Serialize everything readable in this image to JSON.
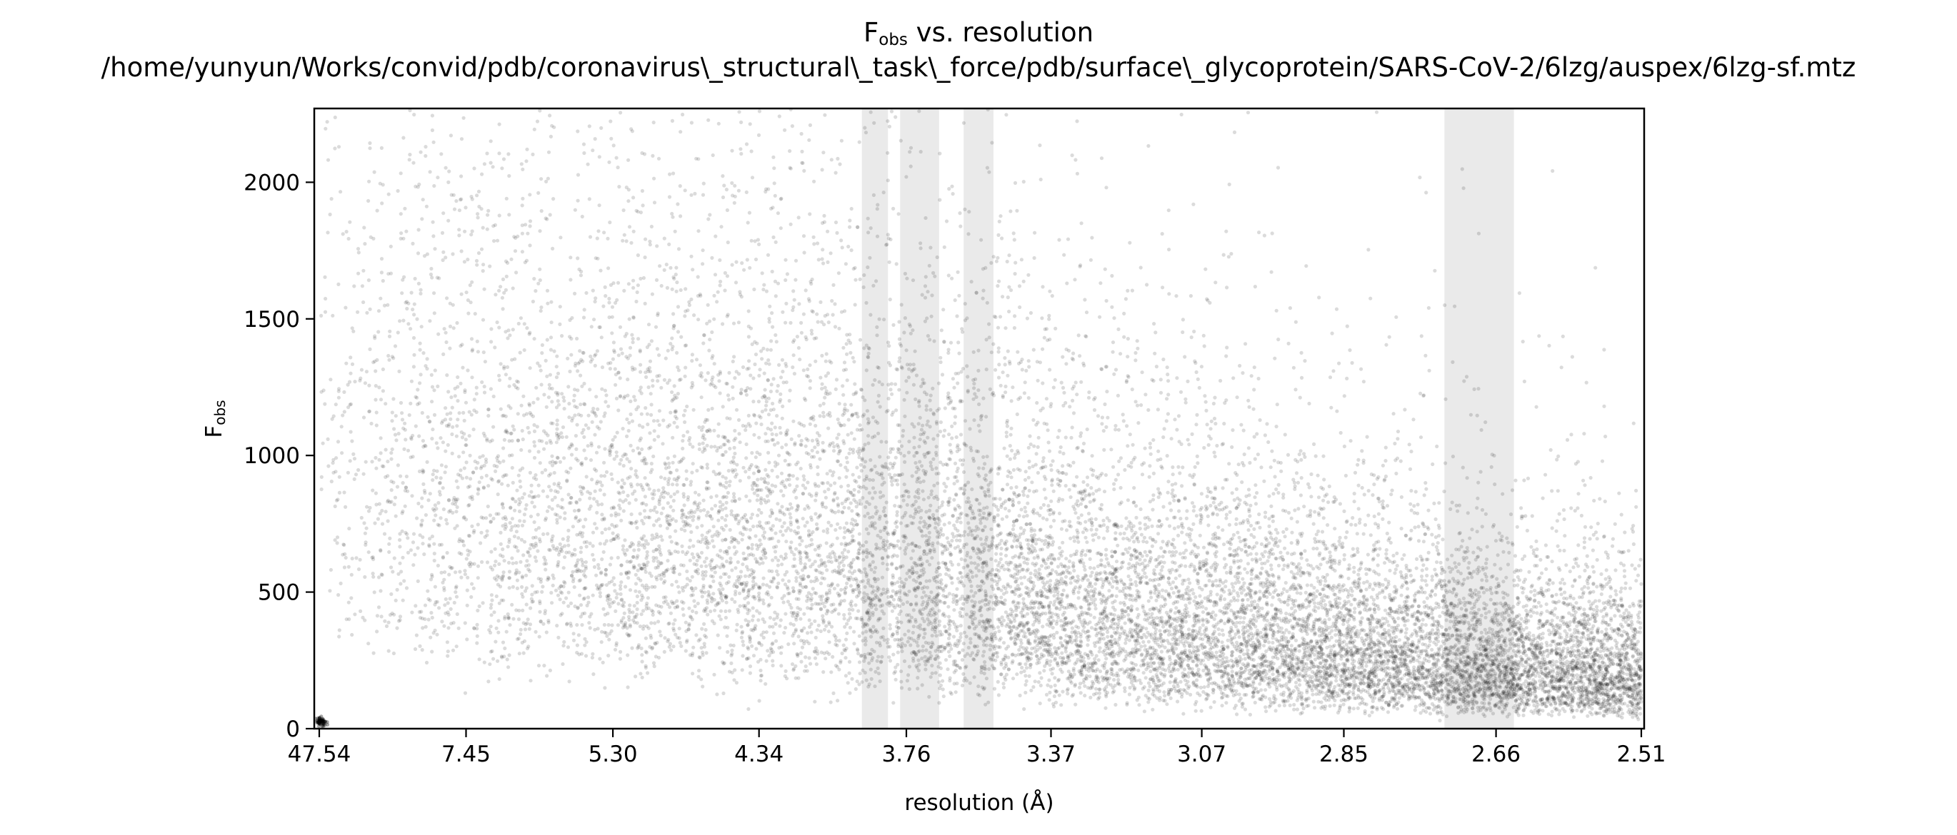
{
  "chart_data": {
    "type": "scatter",
    "title": {
      "symbol": "F",
      "subscript": "obs",
      "rest": " vs. resolution"
    },
    "subtitle": "/home/yunyun/Works/convid/pdb/coronavirus\\_structural\\_task\\_force/pdb/surface\\_glycoprotein/SARS-CoV-2/6lzg/auspex/6lzg-sf.mtz",
    "xlabel": "resolution (Å)",
    "ylabel": {
      "symbol": "F",
      "subscript": "obs"
    },
    "x_axis_scale": "reciprocal-squared",
    "x_ticks": [
      "47.54",
      "7.45",
      "5.30",
      "4.34",
      "3.76",
      "3.37",
      "3.07",
      "2.85",
      "2.66",
      "2.51"
    ],
    "x_range_resolution": [
      47.54,
      2.51
    ],
    "y_ticks": [
      0,
      500,
      1000,
      1500,
      2000
    ],
    "ylim": [
      0,
      2270
    ],
    "grid": false,
    "legend": "none",
    "point_color": "#000000",
    "shaded_band_color": "#d9d9d9",
    "shaded_resolution_ranges": [
      [
        3.91,
        3.82
      ],
      [
        3.78,
        3.66
      ],
      [
        3.59,
        3.51
      ],
      [
        2.72,
        2.64
      ]
    ],
    "density_model": {
      "description": "dense cloud of observed amplitudes; median amplitude falls with resolution",
      "median_by_resolution": [
        {
          "resolution": 47.54,
          "median": 1300
        },
        {
          "resolution": 7.45,
          "median": 980
        },
        {
          "resolution": 5.3,
          "median": 860
        },
        {
          "resolution": 4.34,
          "median": 790
        },
        {
          "resolution": 3.76,
          "median": 690
        },
        {
          "resolution": 3.37,
          "median": 500
        },
        {
          "resolution": 3.07,
          "median": 400
        },
        {
          "resolution": 2.85,
          "median": 310
        },
        {
          "resolution": 2.66,
          "median": 250
        },
        {
          "resolution": 2.51,
          "median": 220
        }
      ],
      "low_resolution_cluster": {
        "resolution": 40.0,
        "F_obs": 25
      }
    }
  }
}
